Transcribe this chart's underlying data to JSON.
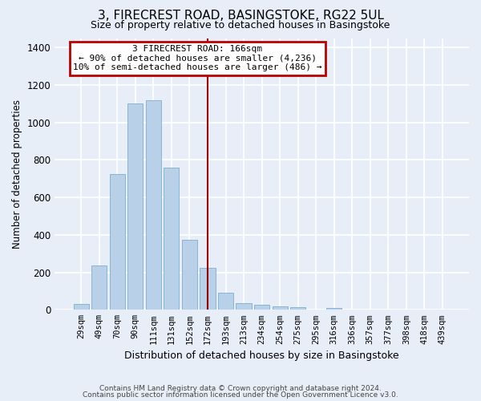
{
  "title": "3, FIRECREST ROAD, BASINGSTOKE, RG22 5UL",
  "subtitle": "Size of property relative to detached houses in Basingstoke",
  "xlabel": "Distribution of detached houses by size in Basingstoke",
  "ylabel": "Number of detached properties",
  "categories": [
    "29sqm",
    "49sqm",
    "70sqm",
    "90sqm",
    "111sqm",
    "131sqm",
    "152sqm",
    "172sqm",
    "193sqm",
    "213sqm",
    "234sqm",
    "254sqm",
    "275sqm",
    "295sqm",
    "316sqm",
    "336sqm",
    "357sqm",
    "377sqm",
    "398sqm",
    "418sqm",
    "439sqm"
  ],
  "values": [
    30,
    235,
    725,
    1100,
    1120,
    760,
    375,
    225,
    90,
    35,
    25,
    20,
    15,
    0,
    10,
    0,
    0,
    0,
    0,
    0,
    0
  ],
  "bar_color": "#b8d0e8",
  "bar_edge_color": "#8ab4d4",
  "background_color": "#e8eef7",
  "grid_color": "#ffffff",
  "vline_x": 7.0,
  "vline_color": "#9b0000",
  "annotation_text": "3 FIRECREST ROAD: 166sqm\n← 90% of detached houses are smaller (4,236)\n10% of semi-detached houses are larger (486) →",
  "annotation_box_color": "#bb0000",
  "ylim": [
    0,
    1450
  ],
  "yticks": [
    0,
    200,
    400,
    600,
    800,
    1000,
    1200,
    1400
  ],
  "footer_line1": "Contains HM Land Registry data © Crown copyright and database right 2024.",
  "footer_line2": "Contains public sector information licensed under the Open Government Licence v3.0."
}
